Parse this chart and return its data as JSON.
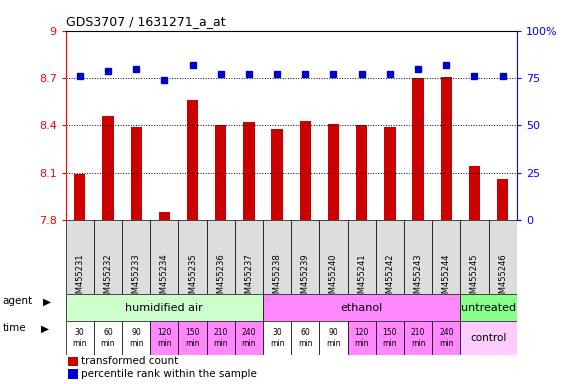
{
  "title": "GDS3707 / 1631271_a_at",
  "samples": [
    "GSM455231",
    "GSM455232",
    "GSM455233",
    "GSM455234",
    "GSM455235",
    "GSM455236",
    "GSM455237",
    "GSM455238",
    "GSM455239",
    "GSM455240",
    "GSM455241",
    "GSM455242",
    "GSM455243",
    "GSM455244",
    "GSM455245",
    "GSM455246"
  ],
  "bar_values": [
    8.09,
    8.46,
    8.39,
    7.85,
    8.56,
    8.4,
    8.42,
    8.38,
    8.43,
    8.41,
    8.4,
    8.39,
    8.7,
    8.71,
    8.14,
    8.06
  ],
  "percentile_values": [
    76,
    79,
    80,
    74,
    82,
    77,
    77,
    77,
    77,
    77,
    77,
    77,
    80,
    82,
    76,
    76
  ],
  "bar_color": "#cc0000",
  "dot_color": "#0000cc",
  "ylim_left": [
    7.8,
    9.0
  ],
  "ylim_right": [
    0,
    100
  ],
  "yticks_left": [
    7.8,
    8.1,
    8.4,
    8.7,
    9.0
  ],
  "ytick_labels_left": [
    "7.8",
    "8.1",
    "8.4",
    "8.7",
    "9"
  ],
  "yticks_right": [
    0,
    25,
    50,
    75,
    100
  ],
  "ytick_labels_right": [
    "0",
    "25",
    "50",
    "75",
    "100%"
  ],
  "agent_groups": [
    {
      "label": "humidified air",
      "start": 0,
      "end": 7,
      "color": "#ccffcc"
    },
    {
      "label": "ethanol",
      "start": 7,
      "end": 14,
      "color": "#ff88ff"
    },
    {
      "label": "untreated",
      "start": 14,
      "end": 16,
      "color": "#88ff88"
    }
  ],
  "time_labels": [
    "30\nmin",
    "60\nmin",
    "90\nmin",
    "120\nmin",
    "150\nmin",
    "210\nmin",
    "240\nmin",
    "30\nmin",
    "60\nmin",
    "90\nmin",
    "120\nmin",
    "150\nmin",
    "210\nmin",
    "240\nmin"
  ],
  "time_colors": [
    "#ffffff",
    "#ffffff",
    "#ffffff",
    "#ff88ff",
    "#ff88ff",
    "#ff88ff",
    "#ff88ff",
    "#ffffff",
    "#ffffff",
    "#ffffff",
    "#ff88ff",
    "#ff88ff",
    "#ff88ff",
    "#ff88ff"
  ],
  "control_color": "#ffccff",
  "legend_bar_color": "#cc0000",
  "legend_dot_color": "#0000cc",
  "legend_bar_label": "transformed count",
  "legend_dot_label": "percentile rank within the sample",
  "agent_label": "agent",
  "time_label": "time",
  "background_color": "#ffffff",
  "sample_bg_color": "#dddddd"
}
